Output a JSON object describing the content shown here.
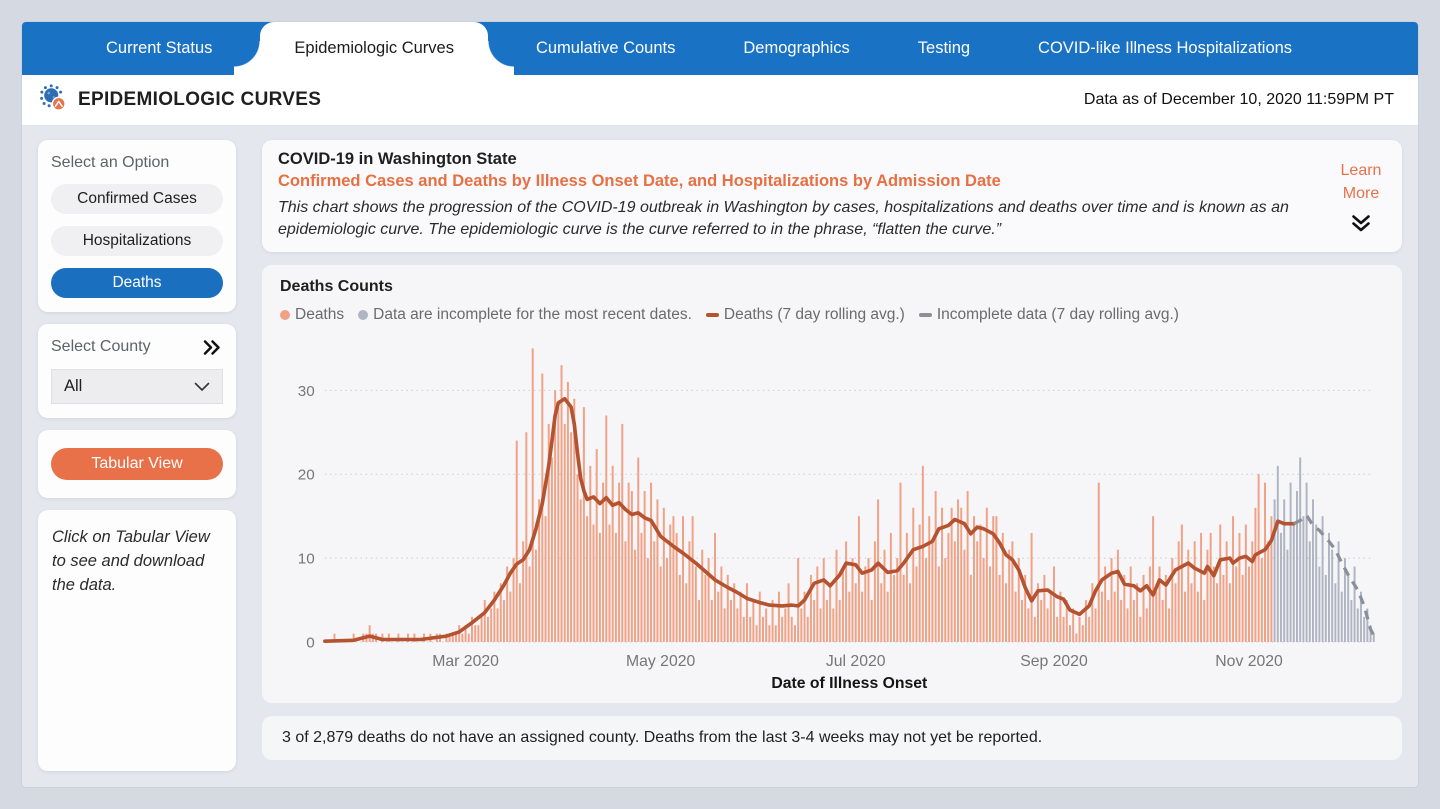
{
  "nav": {
    "tabs": [
      {
        "label": "Current Status",
        "active": false
      },
      {
        "label": "Epidemiologic Curves",
        "active": true
      },
      {
        "label": "Cumulative Counts",
        "active": false
      },
      {
        "label": "Demographics",
        "active": false
      },
      {
        "label": "Testing",
        "active": false
      },
      {
        "label": "COVID-like Illness Hospitalizations",
        "active": false
      }
    ]
  },
  "header": {
    "title": "EPIDEMIOLOGIC CURVES",
    "data_as_of": "Data as of December 10, 2020 11:59PM PT",
    "logo_icon": "virus-icon"
  },
  "sidebar": {
    "select_option_label": "Select an Option",
    "options": [
      {
        "label": "Confirmed Cases",
        "selected": false
      },
      {
        "label": "Hospitalizations",
        "selected": false
      },
      {
        "label": "Deaths",
        "selected": true
      }
    ],
    "select_county_label": "Select County",
    "expand_icon": "double-chevron-right-icon",
    "county_dropdown": {
      "value": "All",
      "icon": "chevron-down-icon"
    },
    "tabular_view_label": "Tabular View",
    "note": "Click on Tabular View to see and download the data."
  },
  "main": {
    "title": "COVID-19 in Washington State",
    "subtitle": "Confirmed Cases and Deaths by Illness Onset Date, and Hospitalizations by Admission Date",
    "description": "This chart shows the progression of the COVID-19 outbreak in Washington by cases, hospitalizations and deaths over time and is known as an epidemiologic curve. The epidemiologic curve is the curve referred to in the phrase, “flatten the curve.”",
    "learn_more": "Learn More",
    "learn_more_icon": "double-chevron-down-icon",
    "footnote": "3 of 2,879 deaths do not have an assigned county. Deaths from the last 3-4 weeks may not yet be reported."
  },
  "chart_data": {
    "type": "bar",
    "title": "Deaths Counts",
    "xlabel": "Date of Illness Onset",
    "ylabel": "",
    "ylim": [
      0,
      36
    ],
    "yticks": [
      0,
      10,
      20,
      30
    ],
    "grid": "dotted-horizontal",
    "x_start_date": "2020-01-17",
    "x_end_date": "2020-12-10",
    "xticks": [
      {
        "day": 44,
        "label": "Mar 2020"
      },
      {
        "day": 105,
        "label": "May 2020"
      },
      {
        "day": 166,
        "label": "Jul 2020"
      },
      {
        "day": 228,
        "label": "Sep 2020"
      },
      {
        "day": 289,
        "label": "Nov 2020"
      }
    ],
    "legend": [
      {
        "label": "Deaths",
        "marker": "dot",
        "color": "#F0A287"
      },
      {
        "label": "Data are incomplete for the most recent dates.",
        "marker": "dot",
        "color": "#B0B5C3"
      },
      {
        "label": "Deaths (7 day rolling avg.)",
        "marker": "line",
        "color": "#B5522F"
      },
      {
        "label": "Incomplete data (7 day rolling avg.)",
        "marker": "line",
        "color": "#8A8F99"
      }
    ],
    "bars": {
      "description": "Daily death counts, day 0 = 2020-01-17",
      "incomplete_start_index": 297,
      "complete_color": "#F0A287",
      "incomplete_color": "#B0B5C3",
      "values": [
        0,
        0,
        0,
        1,
        0,
        0,
        0,
        0,
        0,
        1,
        0,
        0,
        1,
        1,
        2,
        1,
        1,
        0,
        1,
        0,
        1,
        0,
        0,
        1,
        0,
        0,
        1,
        0,
        1,
        0,
        0,
        1,
        0,
        1,
        0,
        1,
        1,
        0,
        1,
        1,
        1,
        1,
        2,
        1,
        2,
        1,
        3,
        2,
        2,
        3,
        5,
        3,
        4,
        6,
        4,
        7,
        5,
        9,
        6,
        10,
        24,
        7,
        12,
        25,
        9,
        35,
        11,
        17,
        32,
        15,
        26,
        22,
        30,
        28,
        33,
        26,
        31,
        25,
        29,
        20,
        17,
        28,
        15,
        21,
        14,
        23,
        13,
        19,
        27,
        14,
        21,
        13,
        19,
        26,
        12,
        19,
        18,
        11,
        22,
        13,
        18,
        10,
        19,
        12,
        17,
        9,
        16,
        10,
        14,
        15,
        13,
        8,
        15,
        7,
        12,
        15,
        9,
        5,
        11,
        8,
        10,
        5,
        13,
        6,
        9,
        4,
        8,
        5,
        7,
        4,
        6,
        3,
        7,
        3,
        5,
        2,
        6,
        3,
        4,
        2,
        5,
        2,
        6,
        3,
        4,
        7,
        3,
        2,
        10,
        4,
        6,
        3,
        8,
        5,
        9,
        4,
        10,
        5,
        7,
        4,
        11,
        5,
        9,
        12,
        6,
        10,
        7,
        15,
        6,
        9,
        10,
        5,
        12,
        17,
        7,
        11,
        6,
        13,
        8,
        10,
        19,
        8,
        13,
        7,
        16,
        9,
        14,
        21,
        10,
        15,
        12,
        18,
        9,
        16,
        10,
        13,
        16,
        12,
        17,
        16,
        11,
        18,
        8,
        15,
        12,
        14,
        10,
        16,
        9,
        15,
        15,
        8,
        13,
        7,
        11,
        12,
        6,
        10,
        5,
        8,
        4,
        13,
        3,
        7,
        5,
        8,
        4,
        6,
        9,
        3,
        6,
        3,
        5,
        2,
        4,
        1,
        3,
        2,
        5,
        3,
        7,
        4,
        19,
        6,
        9,
        5,
        10,
        6,
        11,
        5,
        8,
        4,
        9,
        5,
        7,
        3,
        8,
        4,
        9,
        15,
        6,
        9,
        5,
        8,
        4,
        10,
        7,
        12,
        14,
        6,
        11,
        7,
        12,
        6,
        13,
        5,
        11,
        13,
        9,
        7,
        14,
        8,
        12,
        7,
        15,
        9,
        13,
        8,
        14,
        9,
        12,
        16,
        20,
        10,
        19,
        12,
        15,
        17,
        21,
        13,
        17,
        11,
        19,
        14,
        18,
        22,
        15,
        19,
        12,
        17,
        14,
        9,
        15,
        8,
        13,
        11,
        7,
        12,
        6,
        10,
        8,
        5,
        9,
        4,
        6,
        3,
        4,
        2,
        1
      ]
    },
    "rolling_avg": {
      "name": "Deaths (7 day rolling avg.)",
      "color": "#B5522F",
      "points": [
        [
          0,
          0.1
        ],
        [
          9,
          0.2
        ],
        [
          14,
          0.7
        ],
        [
          18,
          0.3
        ],
        [
          30,
          0.3
        ],
        [
          38,
          0.7
        ],
        [
          42,
          1.2
        ],
        [
          46,
          2.3
        ],
        [
          50,
          3.5
        ],
        [
          53,
          5
        ],
        [
          56,
          6.8
        ],
        [
          58,
          8.2
        ],
        [
          60,
          9.3
        ],
        [
          62,
          9.8
        ],
        [
          64,
          11
        ],
        [
          66,
          13.5
        ],
        [
          68,
          16.5
        ],
        [
          70,
          21
        ],
        [
          71,
          24
        ],
        [
          72,
          27
        ],
        [
          73,
          28.5
        ],
        [
          75,
          29
        ],
        [
          77,
          28
        ],
        [
          78,
          26
        ],
        [
          79,
          22.5
        ],
        [
          80,
          19.5
        ],
        [
          81,
          18
        ],
        [
          82,
          17
        ],
        [
          84,
          17.3
        ],
        [
          86,
          16.5
        ],
        [
          88,
          17.2
        ],
        [
          90,
          16.3
        ],
        [
          92,
          16.6
        ],
        [
          94,
          15.8
        ],
        [
          96,
          15.2
        ],
        [
          98,
          15.4
        ],
        [
          100,
          14.8
        ],
        [
          102,
          14.5
        ],
        [
          105,
          12.6
        ],
        [
          109,
          11.4
        ],
        [
          112,
          10.6
        ],
        [
          116,
          9.4
        ],
        [
          119,
          8.4
        ],
        [
          122,
          7.4
        ],
        [
          126,
          6.5
        ],
        [
          129,
          5.9
        ],
        [
          132,
          5.2
        ],
        [
          136,
          4.7
        ],
        [
          139,
          4.4
        ],
        [
          143,
          4.3
        ],
        [
          146,
          4.4
        ],
        [
          148,
          4.3
        ],
        [
          150,
          5
        ],
        [
          153,
          7
        ],
        [
          156,
          7.4
        ],
        [
          158,
          6.7
        ],
        [
          161,
          8
        ],
        [
          163,
          9.4
        ],
        [
          166,
          9.2
        ],
        [
          168,
          8.2
        ],
        [
          171,
          8.6
        ],
        [
          173,
          9.4
        ],
        [
          176,
          8.3
        ],
        [
          179,
          8.5
        ],
        [
          181,
          9.4
        ],
        [
          184,
          11
        ],
        [
          187,
          11.4
        ],
        [
          190,
          12
        ],
        [
          192,
          13.5
        ],
        [
          195,
          13.9
        ],
        [
          197,
          14.6
        ],
        [
          200,
          14.1
        ],
        [
          202,
          12.9
        ],
        [
          204,
          13.7
        ],
        [
          206,
          13.5
        ],
        [
          209,
          12.9
        ],
        [
          211,
          11.8
        ],
        [
          213,
          10.4
        ],
        [
          215,
          9.8
        ],
        [
          217,
          8.6
        ],
        [
          219,
          6.5
        ],
        [
          221,
          4.9
        ],
        [
          223,
          6.1
        ],
        [
          226,
          6.2
        ],
        [
          229,
          5.4
        ],
        [
          231,
          5.1
        ],
        [
          233,
          3.8
        ],
        [
          236,
          3.3
        ],
        [
          239,
          4.3
        ],
        [
          241,
          6.1
        ],
        [
          243,
          7.4
        ],
        [
          246,
          8.2
        ],
        [
          248,
          8.4
        ],
        [
          250,
          6.9
        ],
        [
          253,
          6.7
        ],
        [
          255,
          6.1
        ],
        [
          257,
          6.7
        ],
        [
          259,
          5.6
        ],
        [
          261,
          7.4
        ],
        [
          263,
          6.8
        ],
        [
          266,
          8.6
        ],
        [
          268,
          9
        ],
        [
          270,
          9.4
        ],
        [
          272,
          8.8
        ],
        [
          275,
          8.2
        ],
        [
          276,
          9
        ],
        [
          278,
          7.9
        ],
        [
          280,
          9.8
        ],
        [
          283,
          10
        ],
        [
          284,
          9.4
        ],
        [
          286,
          10
        ],
        [
          288,
          10.2
        ],
        [
          290,
          9.6
        ],
        [
          291,
          10.4
        ],
        [
          294,
          11
        ],
        [
          296,
          12.1
        ],
        [
          298,
          14.4
        ],
        [
          300,
          14.1
        ],
        [
          303,
          14.1
        ]
      ]
    },
    "incomplete_rolling_avg": {
      "name": "Incomplete data (7 day rolling avg.)",
      "color": "#8A8F99",
      "dashed": true,
      "points": [
        [
          303,
          14.1
        ],
        [
          305,
          14.5
        ],
        [
          307,
          15.1
        ],
        [
          309,
          13.9
        ],
        [
          311,
          13.3
        ],
        [
          314,
          12
        ],
        [
          316,
          11
        ],
        [
          318,
          9.4
        ],
        [
          320,
          8
        ],
        [
          323,
          6.2
        ],
        [
          325,
          4.3
        ],
        [
          327,
          1.5
        ],
        [
          328,
          0.8
        ]
      ]
    }
  },
  "colors": {
    "nav_blue": "#1A72C4",
    "selected_blue": "#1A6FBE",
    "accent_orange": "#E8714A",
    "bar_orange": "#F0A287",
    "avg_line": "#B5522F",
    "incomplete_bar": "#B0B5C3",
    "incomplete_line": "#8A8F99"
  }
}
